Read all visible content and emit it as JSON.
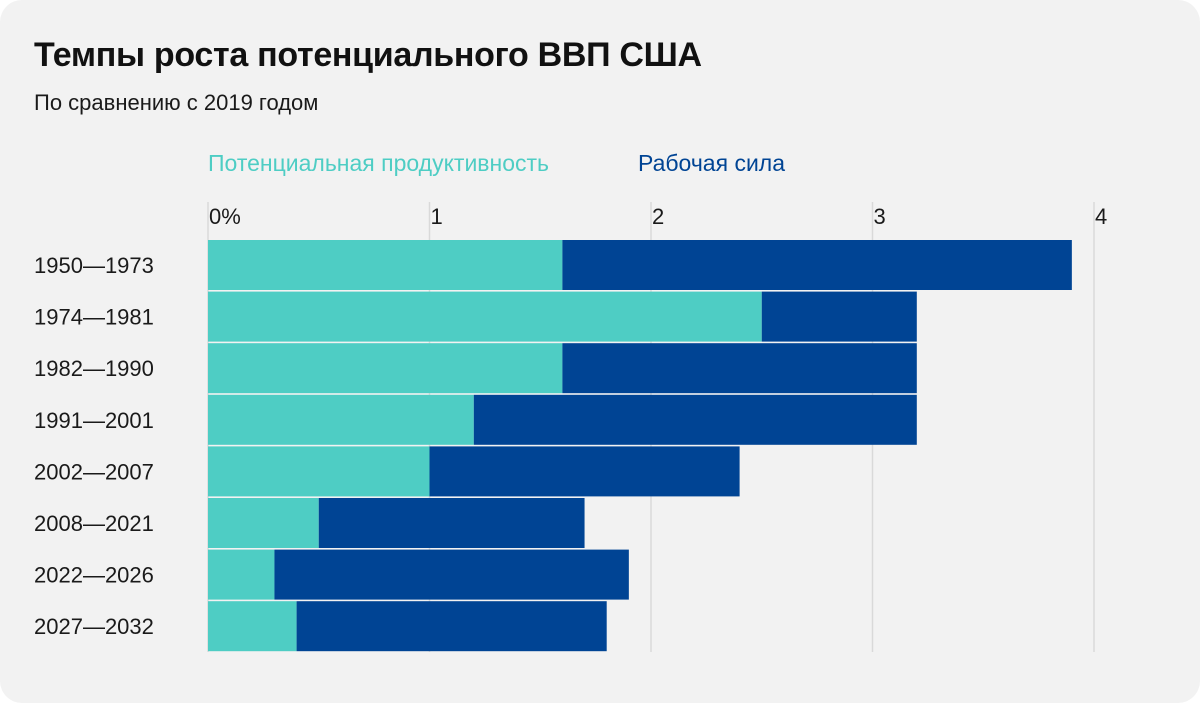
{
  "chart_data": {
    "type": "bar",
    "orientation": "horizontal",
    "stacked": true,
    "title": "Темпы роста потенциального ВВП США",
    "subtitle": "По сравнению с 2019 годом",
    "categories": [
      "1950—1973",
      "1974—1981",
      "1982—1990",
      "1991—2001",
      "2002—2007",
      "2008—2021",
      "2022—2026",
      "2027—2032"
    ],
    "series": [
      {
        "name": "Потенциальная продуктивность",
        "color": "#4ecdc4",
        "values": [
          1.6,
          2.5,
          1.6,
          1.2,
          1.0,
          0.5,
          0.3,
          0.4
        ]
      },
      {
        "name": "Рабочая сила",
        "color": "#004494",
        "values": [
          2.3,
          0.7,
          1.6,
          2.0,
          1.4,
          1.2,
          1.6,
          1.4
        ]
      }
    ],
    "xticks": [
      "0%",
      "1",
      "2",
      "3",
      "4"
    ],
    "xlim": [
      0,
      4
    ],
    "grid": true,
    "legend_position": "top"
  }
}
